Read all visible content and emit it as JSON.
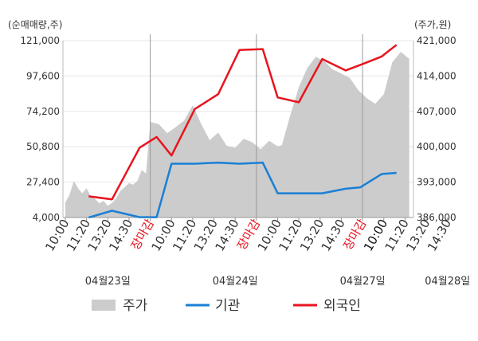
{
  "chart_data": {
    "type": "line",
    "left_axis_unit": "(순매매량,주)",
    "right_axis_unit": "(주가,원)",
    "left_ticks": [
      "121,000",
      "97,600",
      "74,200",
      "50,800",
      "27,400",
      "4,000"
    ],
    "right_ticks": [
      "421,000",
      "414,000",
      "407,000",
      "400,000",
      "393,000",
      "386,000"
    ],
    "ylim_left": [
      4000,
      121000
    ],
    "ylim_right": [
      386000,
      421000
    ],
    "x_ticks": [
      "10:00",
      "11:20",
      "13:20",
      "14:30",
      "장마감",
      "10:00",
      "11:20",
      "13:20",
      "14:30",
      "장마감",
      "10:00",
      "11:20",
      "13:20",
      "14:30",
      "장마감",
      "10:00",
      "11:20",
      "13:20",
      "14:30"
    ],
    "highlight_label": "장마감",
    "current_tick_index": 15,
    "dates": [
      {
        "label": "04월23일",
        "tick_index": 2
      },
      {
        "label": "04월24일",
        "tick_index": 8
      },
      {
        "label": "04월27일",
        "tick_index": 14
      },
      {
        "label": "04월28일",
        "tick_index": 18
      }
    ],
    "day_boundaries": [
      4,
      9,
      14
    ],
    "legend": [
      "주가",
      "기관",
      "외국인"
    ],
    "series": [
      {
        "name": "주가",
        "axis": "right",
        "kind": "area",
        "color": "#cccccc",
        "x": [
          0,
          0.2,
          0.4,
          0.6,
          0.8,
          1.0,
          1.2,
          1.4,
          1.6,
          1.8,
          2.0,
          2.2,
          2.4,
          2.6,
          2.8,
          3.0,
          3.2,
          3.4,
          3.6,
          3.8,
          4.0,
          4.4,
          4.8,
          5.2,
          5.6,
          6.0,
          6.4,
          6.8,
          7.2,
          7.6,
          8.0,
          8.4,
          8.8,
          9.2,
          9.6,
          10.0,
          10.2,
          10.6,
          11.0,
          11.4,
          11.8,
          12.2,
          12.6,
          13.0,
          13.4,
          13.8,
          14.2,
          14.6,
          15.0,
          15.4,
          15.8,
          16.2
        ],
        "values": [
          389000,
          390500,
          393200,
          391800,
          390800,
          391800,
          390200,
          389700,
          388800,
          389300,
          388300,
          388900,
          389800,
          391300,
          392000,
          392800,
          392500,
          393300,
          395400,
          394700,
          404900,
          404500,
          402700,
          403900,
          405200,
          408200,
          404500,
          401300,
          402800,
          400200,
          399800,
          401600,
          400900,
          399500,
          401200,
          400100,
          400300,
          406300,
          411800,
          415600,
          417800,
          416900,
          415300,
          414500,
          413600,
          411200,
          409600,
          408500,
          410400,
          416700,
          418800,
          417400
        ]
      },
      {
        "name": "기관",
        "axis": "left",
        "kind": "line",
        "color": "#1a7fd6",
        "x": [
          1.1,
          2.2,
          3.5,
          4.3,
          5.0,
          6.1,
          7.2,
          8.2,
          9.3,
          10.0,
          11.0,
          12.1,
          13.2,
          13.9,
          14.9,
          15.6
        ],
        "values": [
          4000,
          8500,
          4200,
          4200,
          39600,
          39600,
          40300,
          39600,
          40300,
          20000,
          20000,
          20000,
          23000,
          24000,
          32800,
          33500
        ]
      },
      {
        "name": "외국인",
        "axis": "left",
        "kind": "line",
        "color": "#e8141e",
        "x": [
          1.1,
          2.2,
          3.5,
          4.3,
          5.0,
          6.1,
          7.2,
          8.2,
          9.3,
          10.0,
          11.0,
          12.1,
          13.2,
          13.9,
          14.9,
          15.6
        ],
        "values": [
          18000,
          16000,
          50200,
          57300,
          45000,
          75800,
          85600,
          114800,
          115400,
          83400,
          80200,
          108800,
          101300,
          105000,
          110500,
          118200
        ]
      }
    ]
  }
}
